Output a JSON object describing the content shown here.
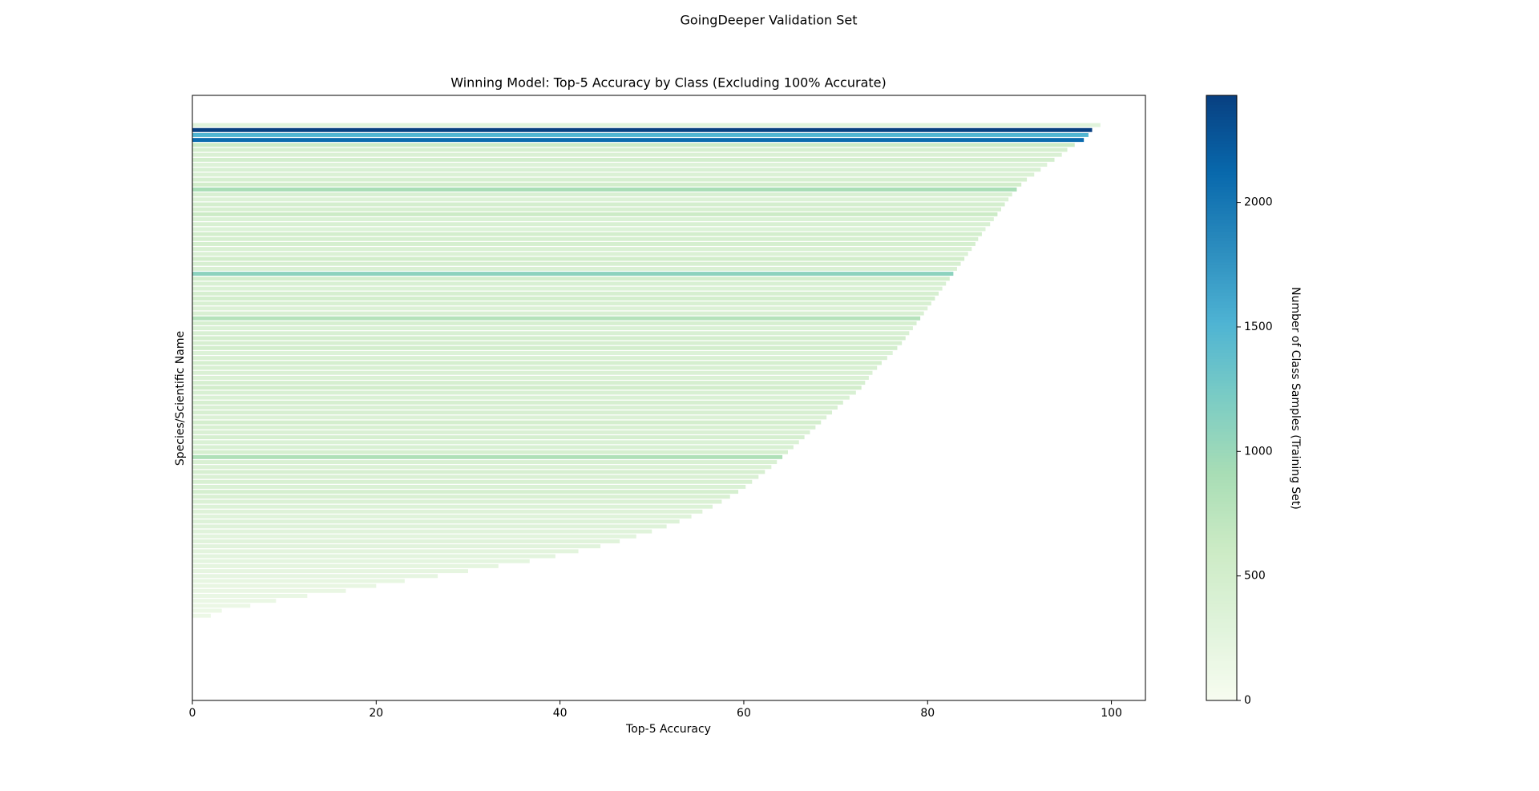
{
  "chart_data": {
    "type": "barh",
    "title": "GoingDeeper Validation Set",
    "subtitle": "Winning Model: Top-5 Accuracy by Class (Excluding 100% Accurate)",
    "x_label": "Top-5 Accuracy",
    "y_label": "Species/Scientific Name",
    "values": [
      98.8,
      97.9,
      97.5,
      97.0,
      96.0,
      95.2,
      94.6,
      93.8,
      93.0,
      92.3,
      91.6,
      90.8,
      90.2,
      89.7,
      89.2,
      88.8,
      88.4,
      88.0,
      87.6,
      87.2,
      86.8,
      86.3,
      85.9,
      85.5,
      85.2,
      84.8,
      84.4,
      84.0,
      83.6,
      83.2,
      82.8,
      82.4,
      82.0,
      81.6,
      81.2,
      80.8,
      80.4,
      80.0,
      79.6,
      79.2,
      78.8,
      78.4,
      78.0,
      77.6,
      77.2,
      76.7,
      76.2,
      75.6,
      75.0,
      74.5,
      74.0,
      73.6,
      73.2,
      72.8,
      72.2,
      71.5,
      70.8,
      70.2,
      69.6,
      69.0,
      68.4,
      67.8,
      67.2,
      66.6,
      66.0,
      65.4,
      64.8,
      64.2,
      63.6,
      63.0,
      62.3,
      61.6,
      60.9,
      60.2,
      59.4,
      58.5,
      57.6,
      56.6,
      55.5,
      54.3,
      53.0,
      51.6,
      50.0,
      48.3,
      46.5,
      44.4,
      42.0,
      39.5,
      36.7,
      33.3,
      30.0,
      26.7,
      23.1,
      20.0,
      16.7,
      12.5,
      9.1,
      6.3,
      3.2,
      2.0
    ],
    "samples": [
      300,
      2430,
      1500,
      2100,
      600,
      450,
      400,
      500,
      350,
      420,
      380,
      460,
      520,
      900,
      410,
      370,
      480,
      440,
      600,
      390,
      430,
      360,
      500,
      450,
      470,
      410,
      380,
      520,
      440,
      400,
      1100,
      480,
      420,
      390,
      460,
      500,
      430,
      370,
      410,
      800,
      450,
      390,
      420,
      480,
      440,
      500,
      360,
      410,
      470,
      430,
      400,
      380,
      450,
      520,
      420,
      390,
      460,
      410,
      440,
      370,
      480,
      430,
      400,
      450,
      390,
      420,
      460,
      850,
      410,
      380,
      440,
      400,
      430,
      390,
      470,
      410,
      380,
      360,
      340,
      320,
      350,
      330,
      300,
      280,
      310,
      290,
      270,
      260,
      250,
      240,
      230,
      220,
      210,
      200,
      190,
      180,
      170,
      160,
      150,
      140
    ],
    "xlim": [
      0,
      103.7
    ],
    "xticks": [
      0,
      20,
      40,
      60,
      80,
      100
    ],
    "colorbar": {
      "label": "Number of Class Samples (Training Set)",
      "colormap": "GnBu",
      "lim": [
        0,
        2430
      ],
      "ticks": [
        0,
        500,
        1000,
        1500,
        2000
      ]
    }
  }
}
